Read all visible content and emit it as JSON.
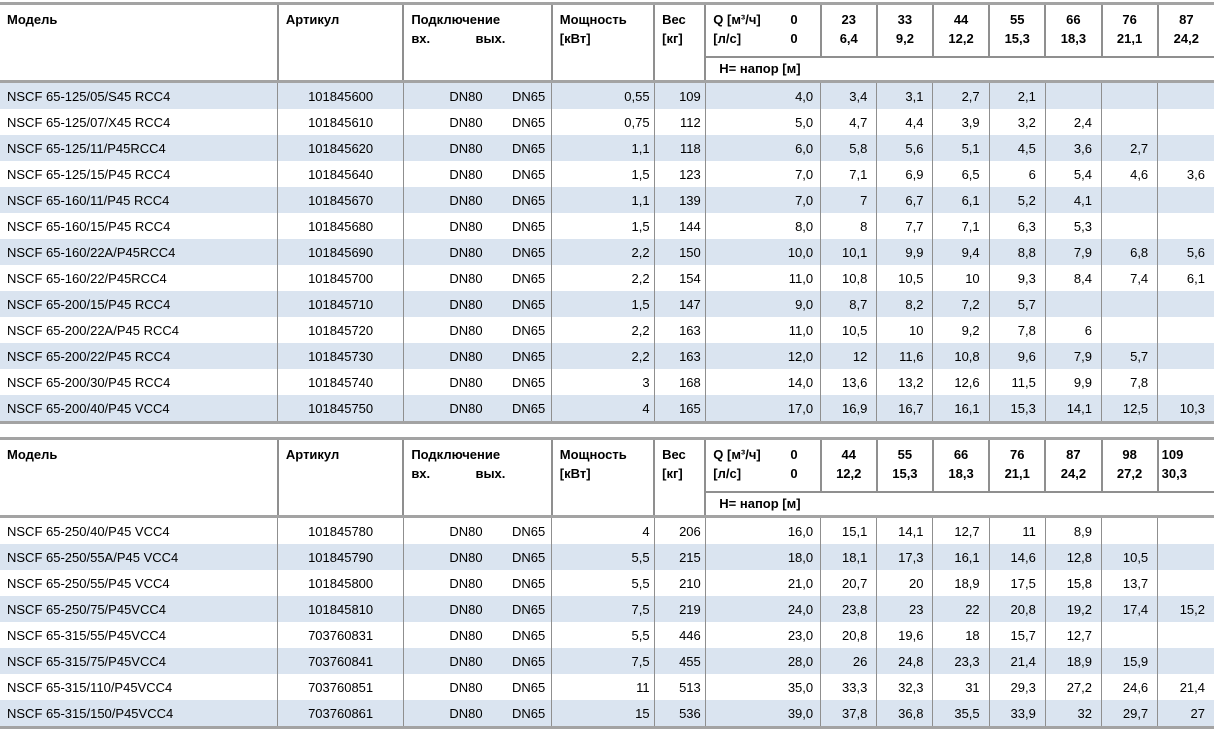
{
  "colors": {
    "stripe": "#dae4f0",
    "grid": "#8f8f8f",
    "thick": "#a3a3a3"
  },
  "header": {
    "model": "Модель",
    "article": "Артикул",
    "connection": "Подключение",
    "conn_in": "вх.",
    "conn_out": "вых.",
    "power_line1": "Мощность",
    "power_line2": "[кВт]",
    "weight_line1": "Вес",
    "weight_line2": "[кг]",
    "q_line1": "Q [м³/ч]",
    "q_line2": "[л/с]",
    "q_zero": "0",
    "head_row": "H= напор [м]"
  },
  "tables": [
    {
      "id": "table1",
      "stripe": "odd",
      "q_columns": [
        [
          "23",
          "6,4"
        ],
        [
          "33",
          "9,2"
        ],
        [
          "44",
          "12,2"
        ],
        [
          "55",
          "15,3"
        ],
        [
          "66",
          "18,3"
        ],
        [
          "76",
          "21,1"
        ],
        [
          "87",
          "24,2"
        ]
      ],
      "rows": [
        {
          "model": "NSCF 65-125/05/S45 RCC4",
          "article": "101845600",
          "in": "DN80",
          "out": "DN65",
          "power": "0,55",
          "weight": "109",
          "h": [
            "4,0",
            "3,4",
            "3,1",
            "2,7",
            "2,1",
            "",
            "",
            ""
          ]
        },
        {
          "model": "NSCF 65-125/07/X45 RCC4",
          "article": "101845610",
          "in": "DN80",
          "out": "DN65",
          "power": "0,75",
          "weight": "112",
          "h": [
            "5,0",
            "4,7",
            "4,4",
            "3,9",
            "3,2",
            "2,4",
            "",
            ""
          ]
        },
        {
          "model": "NSCF 65-125/11/P45RCC4",
          "article": "101845620",
          "in": "DN80",
          "out": "DN65",
          "power": "1,1",
          "weight": "118",
          "h": [
            "6,0",
            "5,8",
            "5,6",
            "5,1",
            "4,5",
            "3,6",
            "2,7",
            ""
          ]
        },
        {
          "model": "NSCF 65-125/15/P45 RCC4",
          "article": "101845640",
          "in": "DN80",
          "out": "DN65",
          "power": "1,5",
          "weight": "123",
          "h": [
            "7,0",
            "7,1",
            "6,9",
            "6,5",
            "6",
            "5,4",
            "4,6",
            "3,6"
          ]
        },
        {
          "model": "NSCF 65-160/11/P45 RCC4",
          "article": "101845670",
          "in": "DN80",
          "out": "DN65",
          "power": "1,1",
          "weight": "139",
          "h": [
            "7,0",
            "7",
            "6,7",
            "6,1",
            "5,2",
            "4,1",
            "",
            ""
          ]
        },
        {
          "model": "NSCF 65-160/15/P45 RCC4",
          "article": "101845680",
          "in": "DN80",
          "out": "DN65",
          "power": "1,5",
          "weight": "144",
          "h": [
            "8,0",
            "8",
            "7,7",
            "7,1",
            "6,3",
            "5,3",
            "",
            ""
          ]
        },
        {
          "model": "NSCF 65-160/22A/P45RCC4",
          "article": "101845690",
          "in": "DN80",
          "out": "DN65",
          "power": "2,2",
          "weight": "150",
          "h": [
            "10,0",
            "10,1",
            "9,9",
            "9,4",
            "8,8",
            "7,9",
            "6,8",
            "5,6"
          ]
        },
        {
          "model": "NSCF 65-160/22/P45RCC4",
          "article": "101845700",
          "in": "DN80",
          "out": "DN65",
          "power": "2,2",
          "weight": "154",
          "h": [
            "11,0",
            "10,8",
            "10,5",
            "10",
            "9,3",
            "8,4",
            "7,4",
            "6,1"
          ]
        },
        {
          "model": "NSCF 65-200/15/P45 RCC4",
          "article": "101845710",
          "in": "DN80",
          "out": "DN65",
          "power": "1,5",
          "weight": "147",
          "h": [
            "9,0",
            "8,7",
            "8,2",
            "7,2",
            "5,7",
            "",
            "",
            ""
          ]
        },
        {
          "model": "NSCF 65-200/22A/P45 RCC4",
          "article": "101845720",
          "in": "DN80",
          "out": "DN65",
          "power": "2,2",
          "weight": "163",
          "h": [
            "11,0",
            "10,5",
            "10",
            "9,2",
            "7,8",
            "6",
            "",
            ""
          ]
        },
        {
          "model": "NSCF 65-200/22/P45 RCC4",
          "article": "101845730",
          "in": "DN80",
          "out": "DN65",
          "power": "2,2",
          "weight": "163",
          "h": [
            "12,0",
            "12",
            "11,6",
            "10,8",
            "9,6",
            "7,9",
            "5,7",
            ""
          ]
        },
        {
          "model": "NSCF 65-200/30/P45 RCC4",
          "article": "101845740",
          "in": "DN80",
          "out": "DN65",
          "power": "3",
          "weight": "168",
          "h": [
            "14,0",
            "13,6",
            "13,2",
            "12,6",
            "11,5",
            "9,9",
            "7,8",
            ""
          ]
        },
        {
          "model": "NSCF 65-200/40/P45 VCC4",
          "article": "101845750",
          "in": "DN80",
          "out": "DN65",
          "power": "4",
          "weight": "165",
          "h": [
            "17,0",
            "16,9",
            "16,7",
            "16,1",
            "15,3",
            "14,1",
            "12,5",
            "10,3"
          ]
        }
      ]
    },
    {
      "id": "table2",
      "stripe": "even",
      "q_columns": [
        [
          "44",
          "12,2"
        ],
        [
          "55",
          "15,3"
        ],
        [
          "66",
          "18,3"
        ],
        [
          "76",
          "21,1"
        ],
        [
          "87",
          "24,2"
        ],
        [
          "98",
          "27,2"
        ],
        [
          "109",
          "30,3"
        ]
      ],
      "rows": [
        {
          "model": "NSCF 65-250/40/P45 VCC4",
          "article": "101845780",
          "in": "DN80",
          "out": "DN65",
          "power": "4",
          "weight": "206",
          "h": [
            "16,0",
            "15,1",
            "14,1",
            "12,7",
            "11",
            "8,9",
            "",
            ""
          ]
        },
        {
          "model": "NSCF 65-250/55A/P45 VCC4",
          "article": "101845790",
          "in": "DN80",
          "out": "DN65",
          "power": "5,5",
          "weight": "215",
          "h": [
            "18,0",
            "18,1",
            "17,3",
            "16,1",
            "14,6",
            "12,8",
            "10,5",
            ""
          ]
        },
        {
          "model": "NSCF 65-250/55/P45 VCC4",
          "article": "101845800",
          "in": "DN80",
          "out": "DN65",
          "power": "5,5",
          "weight": "210",
          "h": [
            "21,0",
            "20,7",
            "20",
            "18,9",
            "17,5",
            "15,8",
            "13,7",
            ""
          ]
        },
        {
          "model": "NSCF 65-250/75/P45VCC4",
          "article": "101845810",
          "in": "DN80",
          "out": "DN65",
          "power": "7,5",
          "weight": "219",
          "h": [
            "24,0",
            "23,8",
            "23",
            "22",
            "20,8",
            "19,2",
            "17,4",
            "15,2"
          ]
        },
        {
          "model": "NSCF 65-315/55/P45VCC4",
          "article": "703760831",
          "in": "DN80",
          "out": "DN65",
          "power": "5,5",
          "weight": "446",
          "h": [
            "23,0",
            "20,8",
            "19,6",
            "18",
            "15,7",
            "12,7",
            "",
            ""
          ]
        },
        {
          "model": "NSCF 65-315/75/P45VCC4",
          "article": "703760841",
          "in": "DN80",
          "out": "DN65",
          "power": "7,5",
          "weight": "455",
          "h": [
            "28,0",
            "26",
            "24,8",
            "23,3",
            "21,4",
            "18,9",
            "15,9",
            ""
          ]
        },
        {
          "model": "NSCF 65-315/110/P45VCC4",
          "article": "703760851",
          "in": "DN80",
          "out": "DN65",
          "power": "11",
          "weight": "513",
          "h": [
            "35,0",
            "33,3",
            "32,3",
            "31",
            "29,3",
            "27,2",
            "24,6",
            "21,4"
          ]
        },
        {
          "model": "NSCF 65-315/150/P45VCC4",
          "article": "703760861",
          "in": "DN80",
          "out": "DN65",
          "power": "15",
          "weight": "536",
          "h": [
            "39,0",
            "37,8",
            "36,8",
            "35,5",
            "33,9",
            "32",
            "29,7",
            "27"
          ]
        }
      ]
    }
  ]
}
